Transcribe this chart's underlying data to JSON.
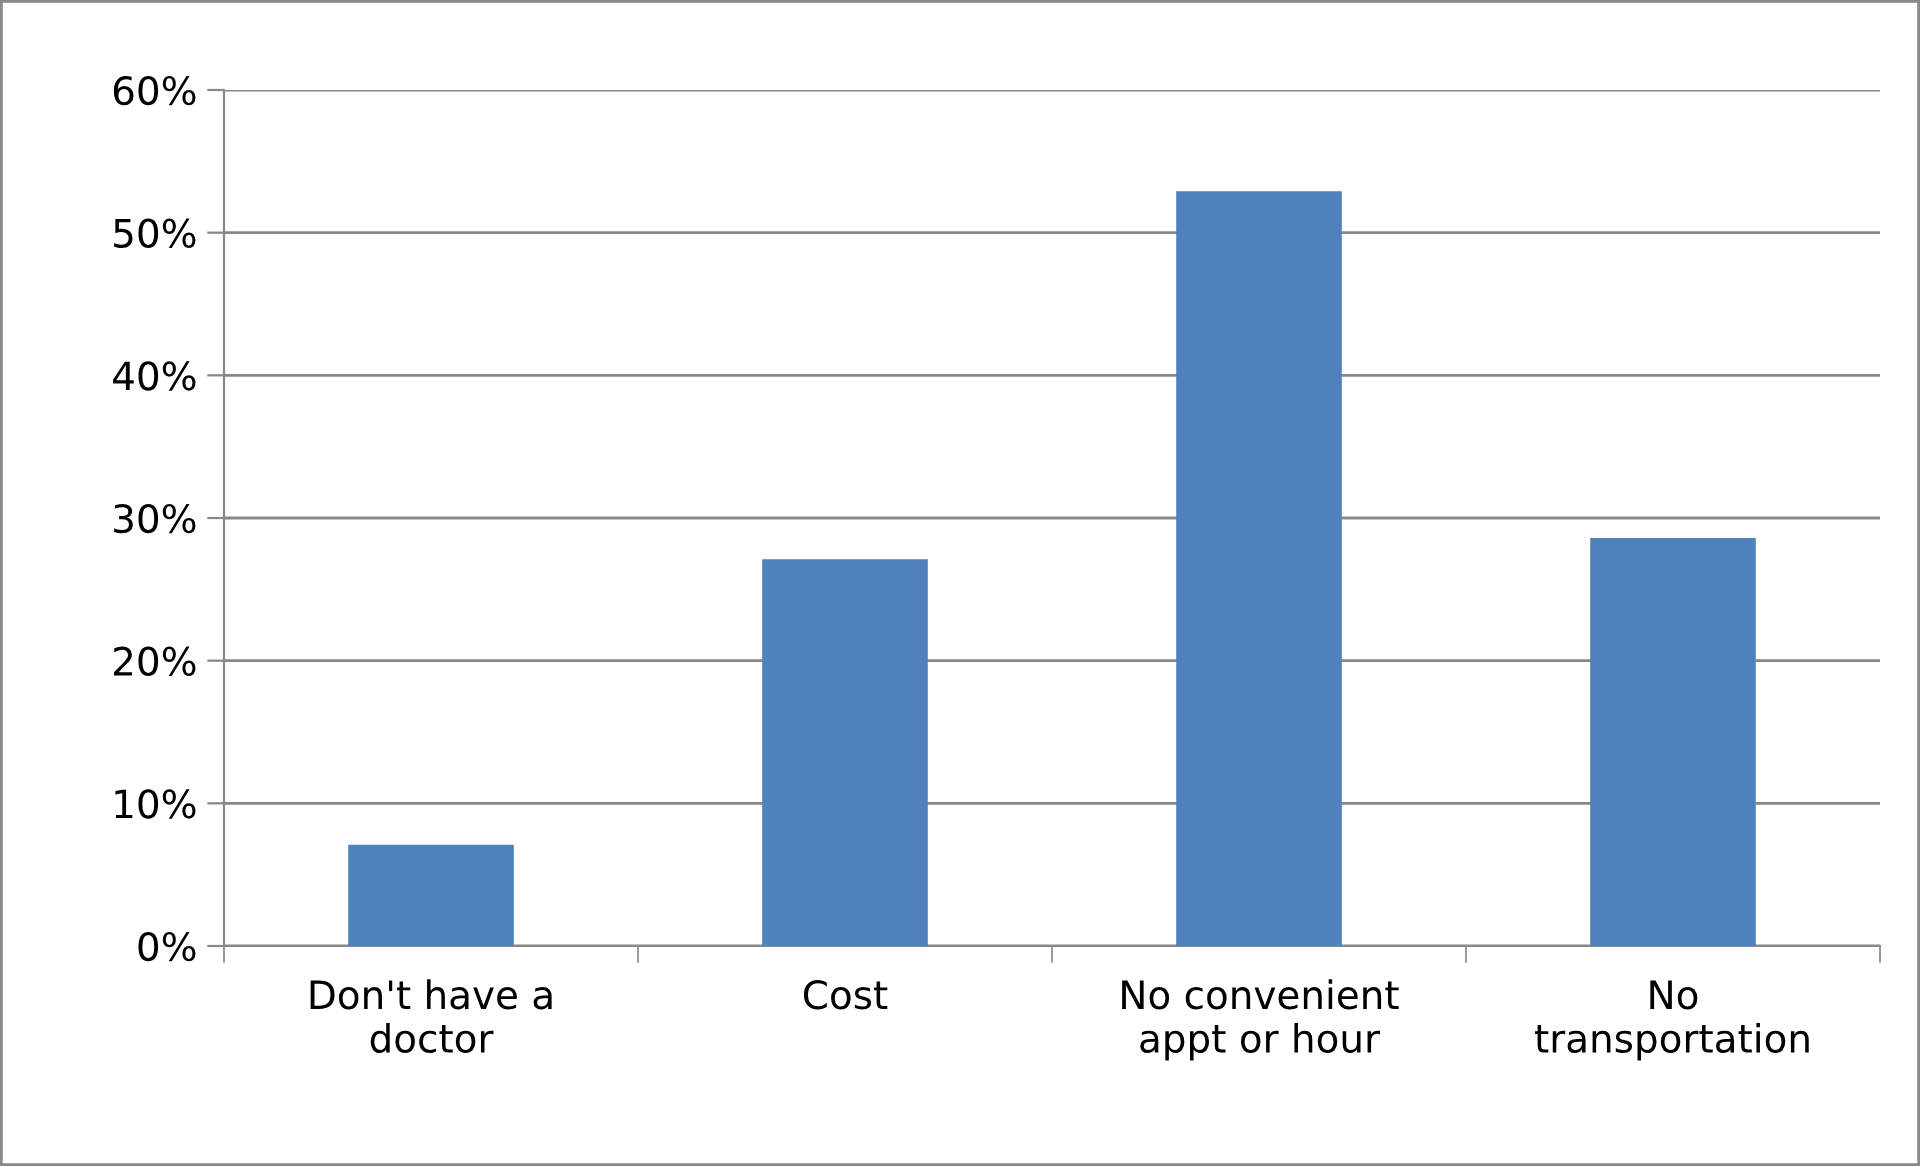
{
  "chart_data": {
    "type": "bar",
    "categories": [
      "Don't have a\ndoctor",
      "Cost",
      "No convenient\nappt or hour",
      "No\ntransportation"
    ],
    "values": [
      7.1,
      27.1,
      52.9,
      28.6
    ],
    "color": "#4f81bd",
    "ylim": [
      0,
      60
    ],
    "yticks": [
      {
        "value": 0,
        "label": "0%"
      },
      {
        "value": 10,
        "label": "10%"
      },
      {
        "value": 20,
        "label": "20%"
      },
      {
        "value": 30,
        "label": "30%"
      },
      {
        "value": 40,
        "label": "40%"
      },
      {
        "value": 50,
        "label": "50%"
      },
      {
        "value": 60,
        "label": "60%"
      }
    ],
    "grid": "y",
    "legend": false
  }
}
